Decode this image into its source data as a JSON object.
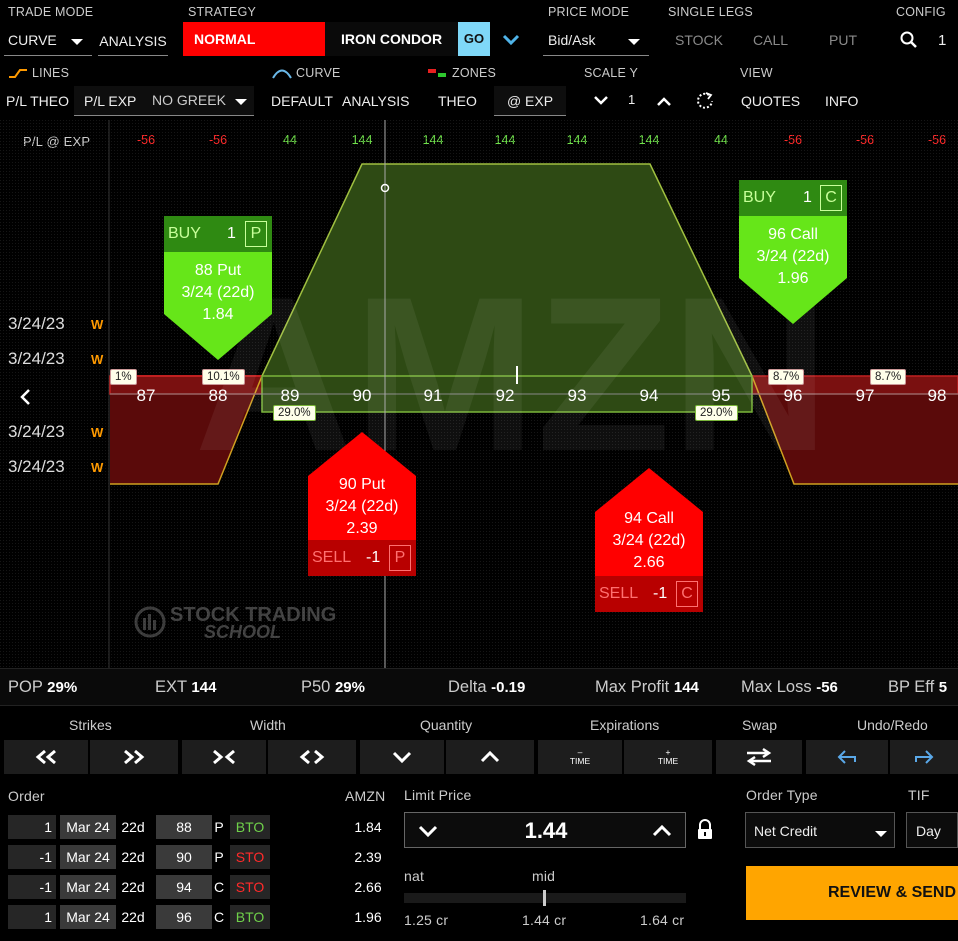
{
  "header": {
    "trade_mode_label": "TRADE MODE",
    "trade_mode_value": "CURVE",
    "analysis_tab": "ANALYSIS",
    "strategy_label": "STRATEGY",
    "strategy_value": "NORMAL",
    "strategy_type": "IRON CONDOR",
    "go_button": "GO",
    "price_mode_label": "PRICE MODE",
    "price_mode_value": "Bid/Ask",
    "single_legs_label": "SINGLE LEGS",
    "single_legs": [
      "STOCK",
      "CALL",
      "PUT"
    ],
    "config_label": "CONFIG",
    "config_value": "1"
  },
  "subheader": {
    "lines_label": "LINES",
    "curve_label": "CURVE",
    "zones_label": "ZONES",
    "scale_y_label": "SCALE Y",
    "view_label": "VIEW",
    "pl_theo": "P/L THEO",
    "pl_exp": "P/L EXP",
    "greek_value": "NO GREEK",
    "default_tab": "DEFAULT",
    "analysis_tab": "ANALYSIS",
    "theo_tab": "THEO",
    "exp_tab": "@ EXP",
    "scale_value": "1",
    "quotes_tab": "QUOTES",
    "info_tab": "INFO"
  },
  "chart": {
    "pl_row_label": "P/L @ EXP",
    "pl_values": [
      "-56",
      "-56",
      "44",
      "144",
      "144",
      "144",
      "144",
      "144",
      "44",
      "-56",
      "-56",
      "-56"
    ],
    "strikes": [
      "87",
      "88",
      "89",
      "90",
      "91",
      "92",
      "93",
      "94",
      "95",
      "96",
      "97",
      "98"
    ],
    "date_labels": [
      "3/24/23",
      "3/24/23",
      "3/24/23",
      "3/24/23"
    ],
    "date_marker": "W",
    "pct_labels": [
      "1%",
      "10.1%",
      "29.0%",
      "29.0%",
      "8.7%",
      "8.7%"
    ],
    "watermark_line1": "STOCK TRADING",
    "watermark_line2": "SCHOOL",
    "bg_letters": "AMZN"
  },
  "legs": {
    "buy_put": {
      "side": "BUY",
      "qty": "1",
      "type": "P",
      "line1": "88 Put",
      "line2": "3/24 (22d)",
      "line3": "1.84"
    },
    "buy_call": {
      "side": "BUY",
      "qty": "1",
      "type": "C",
      "line1": "96 Call",
      "line2": "3/24 (22d)",
      "line3": "1.96"
    },
    "sell_put": {
      "side": "SELL",
      "qty": "-1",
      "type": "P",
      "line1": "90 Put",
      "line2": "3/24 (22d)",
      "line3": "2.39"
    },
    "sell_call": {
      "side": "SELL",
      "qty": "-1",
      "type": "C",
      "line1": "94 Call",
      "line2": "3/24 (22d)",
      "line3": "2.66"
    }
  },
  "stats": {
    "pop_label": "POP",
    "pop": "29%",
    "ext_label": "EXT",
    "ext": "144",
    "p50_label": "P50",
    "p50": "29%",
    "delta_label": "Delta",
    "delta": "-0.19",
    "max_profit_label": "Max Profit",
    "max_profit": "144",
    "max_loss_label": "Max Loss",
    "max_loss": "-56",
    "bp_label": "BP Eff",
    "bp": "5"
  },
  "controls": {
    "strikes": "Strikes",
    "width": "Width",
    "quantity": "Quantity",
    "expirations": "Expirations",
    "swap": "Swap",
    "undo_redo": "Undo/Redo",
    "time_minus": "TIME",
    "time_plus": "TIME"
  },
  "order": {
    "order_label": "Order",
    "symbol": "AMZN",
    "rows": [
      {
        "qty": "1",
        "exp": "Mar 24",
        "dte": "22d",
        "strike": "88",
        "type": "P",
        "action": "BTO",
        "price": "1.84"
      },
      {
        "qty": "-1",
        "exp": "Mar 24",
        "dte": "22d",
        "strike": "90",
        "type": "P",
        "action": "STO",
        "price": "2.39"
      },
      {
        "qty": "-1",
        "exp": "Mar 24",
        "dte": "22d",
        "strike": "94",
        "type": "C",
        "action": "STO",
        "price": "2.66"
      },
      {
        "qty": "1",
        "exp": "Mar 24",
        "dte": "22d",
        "strike": "96",
        "type": "C",
        "action": "BTO",
        "price": "1.96"
      }
    ],
    "limit_price_label": "Limit Price",
    "limit_price": "1.44",
    "nat_label": "nat",
    "mid_label": "mid",
    "nat_value": "1.25 cr",
    "mid_value": "1.44 cr",
    "far_value": "1.64 cr",
    "order_type_label": "Order Type",
    "order_type": "Net Credit",
    "tif_label": "TIF",
    "tif": "Day",
    "review_button": "REVIEW & SEND"
  },
  "colors": {
    "accent_red": "#ff0000",
    "profit_green": "#6fe04a",
    "go_blue": "#7fd8f8",
    "review_orange": "#ffa500",
    "bto_green": "#6fd04a",
    "sto_red": "#ff2a2a"
  }
}
